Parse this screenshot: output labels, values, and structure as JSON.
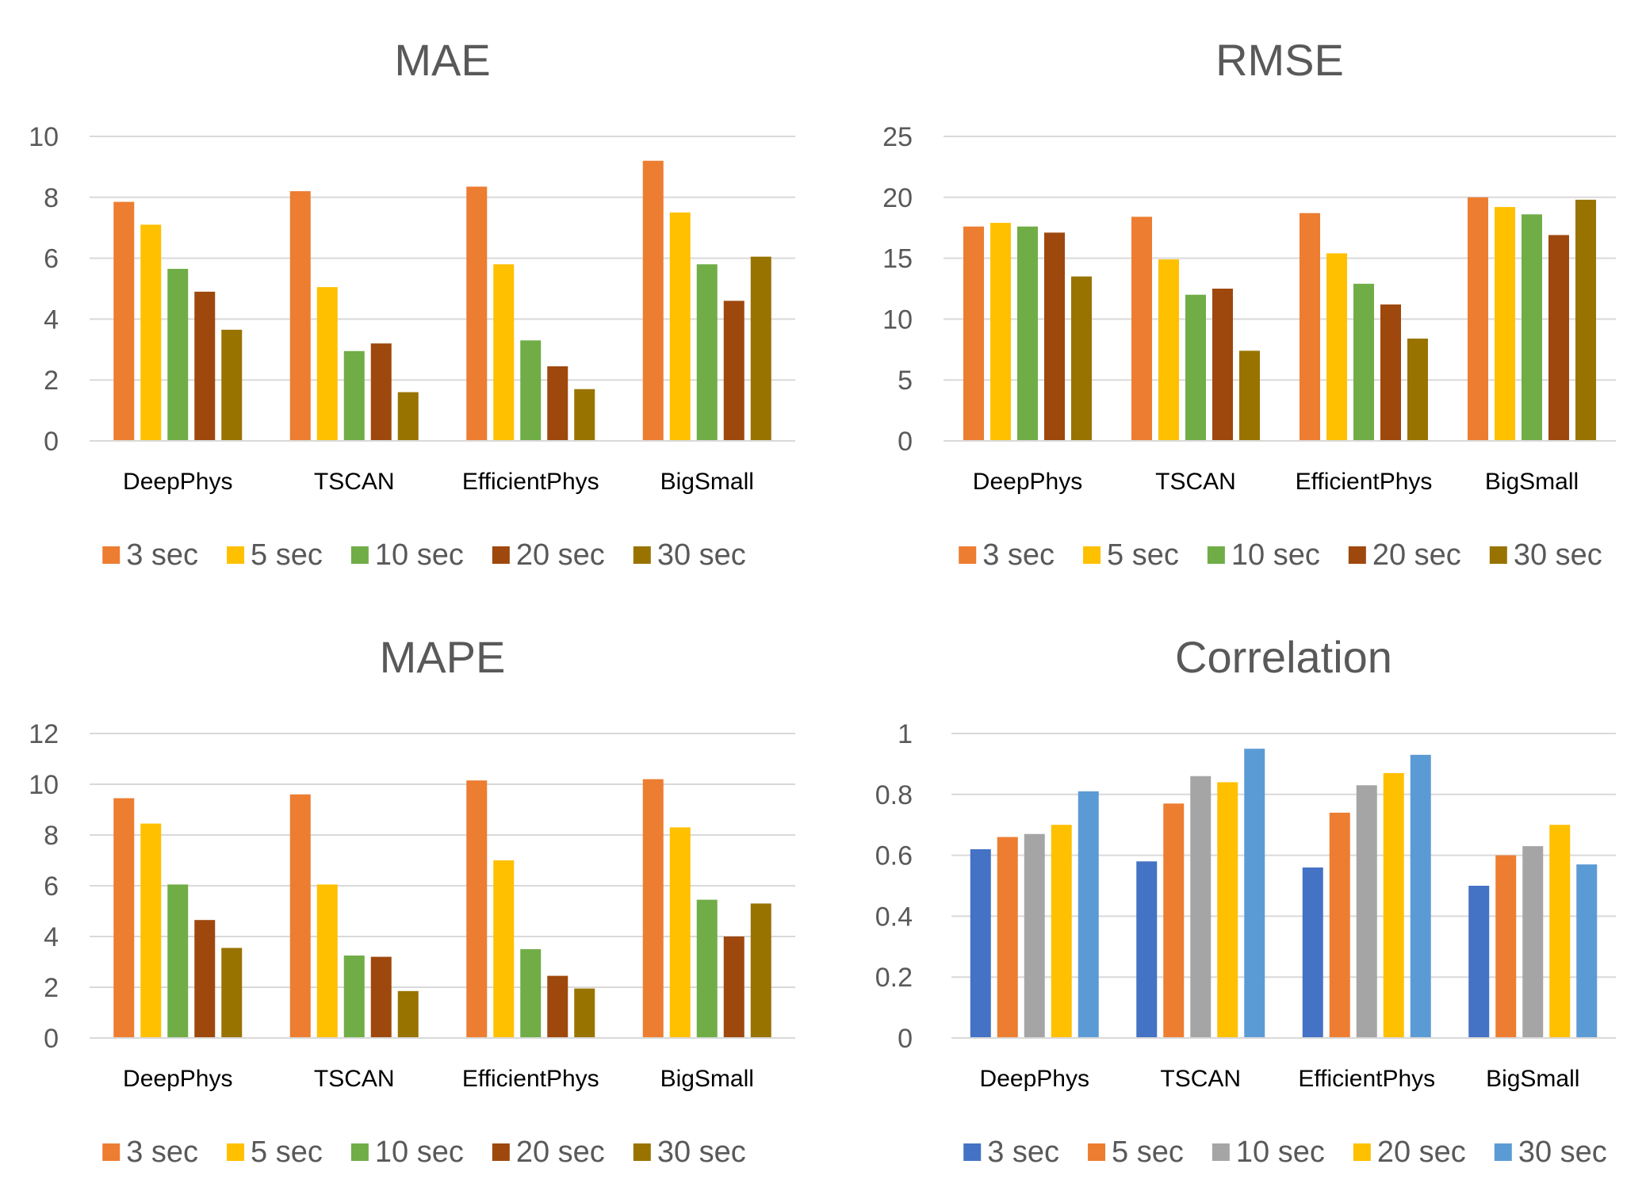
{
  "chart_data": [
    {
      "type": "bar",
      "title": "MAE",
      "categories": [
        "DeepPhys",
        "TSCAN",
        "EfficientPhys",
        "BigSmall"
      ],
      "yticks": [
        "0",
        "2",
        "4",
        "6",
        "8",
        "10"
      ],
      "ylim": [
        0,
        10
      ],
      "grid": true,
      "legend_position": "bottom",
      "series": [
        {
          "name": "3 sec",
          "color": "#ED7D31",
          "values": [
            7.85,
            8.2,
            8.35,
            9.2
          ]
        },
        {
          "name": "5 sec",
          "color": "#FFC000",
          "values": [
            7.1,
            5.05,
            5.8,
            7.5
          ]
        },
        {
          "name": "10 sec",
          "color": "#70AD47",
          "values": [
            5.65,
            2.95,
            3.3,
            5.8
          ]
        },
        {
          "name": "20 sec",
          "color": "#9E480E",
          "values": [
            4.9,
            3.2,
            2.45,
            4.6
          ]
        },
        {
          "name": "30 sec",
          "color": "#997300",
          "values": [
            3.65,
            1.6,
            1.7,
            6.05
          ]
        }
      ]
    },
    {
      "type": "bar",
      "title": "RMSE",
      "categories": [
        "DeepPhys",
        "TSCAN",
        "EfficientPhys",
        "BigSmall"
      ],
      "yticks": [
        "0",
        "5",
        "10",
        "15",
        "20",
        "25"
      ],
      "ylim": [
        0,
        25
      ],
      "grid": true,
      "legend_position": "bottom",
      "series": [
        {
          "name": "3 sec",
          "color": "#ED7D31",
          "values": [
            17.6,
            18.4,
            18.7,
            20.0
          ]
        },
        {
          "name": "5 sec",
          "color": "#FFC000",
          "values": [
            17.9,
            14.9,
            15.4,
            19.2
          ]
        },
        {
          "name": "10 sec",
          "color": "#70AD47",
          "values": [
            17.6,
            12.0,
            12.9,
            18.6
          ]
        },
        {
          "name": "20 sec",
          "color": "#9E480E",
          "values": [
            17.1,
            12.5,
            11.2,
            16.9
          ]
        },
        {
          "name": "30 sec",
          "color": "#997300",
          "values": [
            13.5,
            7.4,
            8.4,
            19.8
          ]
        }
      ]
    },
    {
      "type": "bar",
      "title": "MAPE",
      "categories": [
        "DeepPhys",
        "TSCAN",
        "EfficientPhys",
        "BigSmall"
      ],
      "yticks": [
        "0",
        "2",
        "4",
        "6",
        "8",
        "10",
        "12"
      ],
      "ylim": [
        0,
        12
      ],
      "grid": true,
      "legend_position": "bottom",
      "series": [
        {
          "name": "3 sec",
          "color": "#ED7D31",
          "values": [
            9.45,
            9.6,
            10.15,
            10.2
          ]
        },
        {
          "name": "5 sec",
          "color": "#FFC000",
          "values": [
            8.45,
            6.05,
            7.0,
            8.3
          ]
        },
        {
          "name": "10 sec",
          "color": "#70AD47",
          "values": [
            6.05,
            3.25,
            3.5,
            5.45
          ]
        },
        {
          "name": "20 sec",
          "color": "#9E480E",
          "values": [
            4.65,
            3.2,
            2.45,
            4.0
          ]
        },
        {
          "name": "30 sec",
          "color": "#997300",
          "values": [
            3.55,
            1.85,
            1.95,
            5.3
          ]
        }
      ]
    },
    {
      "type": "bar",
      "title": "Correlation",
      "categories": [
        "DeepPhys",
        "TSCAN",
        "EfficientPhys",
        "BigSmall"
      ],
      "yticks": [
        "0",
        "0.2",
        "0.4",
        "0.6",
        "0.8",
        "1"
      ],
      "ylim": [
        0,
        1
      ],
      "grid": true,
      "legend_position": "bottom",
      "series": [
        {
          "name": "3 sec",
          "color": "#4472C4",
          "values": [
            0.62,
            0.58,
            0.56,
            0.5
          ]
        },
        {
          "name": "5 sec",
          "color": "#ED7D31",
          "values": [
            0.66,
            0.77,
            0.74,
            0.6
          ]
        },
        {
          "name": "10 sec",
          "color": "#A5A5A5",
          "values": [
            0.67,
            0.86,
            0.83,
            0.63
          ]
        },
        {
          "name": "20 sec",
          "color": "#FFC000",
          "values": [
            0.7,
            0.84,
            0.87,
            0.7
          ]
        },
        {
          "name": "30 sec",
          "color": "#5B9BD5",
          "values": [
            0.81,
            0.95,
            0.93,
            0.57
          ]
        }
      ]
    }
  ]
}
